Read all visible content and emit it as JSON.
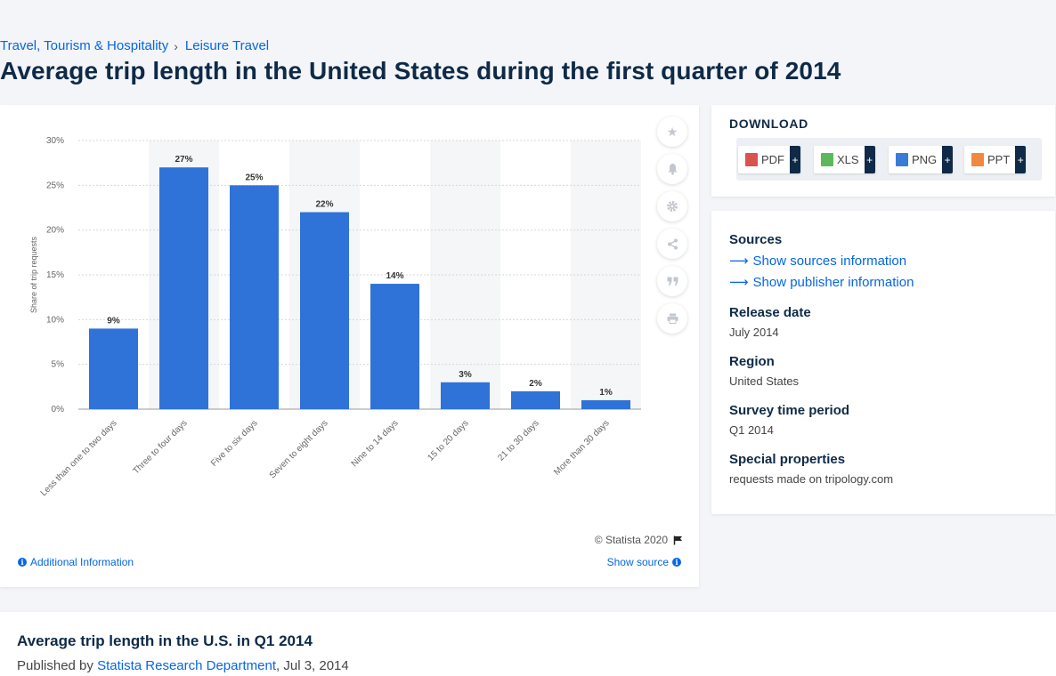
{
  "breadcrumb": [
    {
      "label": "Travel, Tourism & Hospitality"
    },
    {
      "label": "Leisure Travel"
    }
  ],
  "page_title": "Average trip length in the United States during the first quarter of 2014",
  "chart_data": {
    "type": "bar",
    "title": "",
    "xlabel": "",
    "ylabel": "Share of trip requests",
    "categories": [
      "Less than one to two days",
      "Three to four days",
      "Five to six days",
      "Seven to eight days",
      "Nine to 14 days",
      "15 to 20 days",
      "21 to 30 days",
      "More than 30 days"
    ],
    "values": [
      9,
      27,
      25,
      22,
      14,
      3,
      2,
      1
    ],
    "value_labels": [
      "9%",
      "27%",
      "25%",
      "22%",
      "14%",
      "3%",
      "2%",
      "1%"
    ],
    "y_ticks": [
      0,
      5,
      10,
      15,
      20,
      25,
      30
    ],
    "y_tick_labels": [
      "0%",
      "5%",
      "10%",
      "15%",
      "20%",
      "25%",
      "30%"
    ],
    "ylim": [
      0,
      30
    ],
    "grid": true,
    "bar_color": "#2f72d8"
  },
  "chart_footer": {
    "copyright": "© Statista 2020",
    "additional_info": "Additional Information",
    "show_source": "Show source"
  },
  "tools": [
    "star-icon",
    "bell-icon",
    "gear-icon",
    "share-icon",
    "quote-icon",
    "print-icon"
  ],
  "download": {
    "title": "DOWNLOAD",
    "formats": [
      {
        "label": "PDF",
        "color": "#d9534f"
      },
      {
        "label": "XLS",
        "color": "#5cb85c"
      },
      {
        "label": "PNG",
        "color": "#3a7bd5"
      },
      {
        "label": "PPT",
        "color": "#f0883e"
      }
    ],
    "plus": "+"
  },
  "details": {
    "sources_label": "Sources",
    "show_sources": "Show sources information",
    "show_publisher": "Show publisher information",
    "release_date_label": "Release date",
    "release_date": "July 2014",
    "region_label": "Region",
    "region": "United States",
    "survey_period_label": "Survey time period",
    "survey_period": "Q1 2014",
    "special_label": "Special properties",
    "special": "requests made on tripology.com"
  },
  "bottom": {
    "title": "Average trip length in the U.S. in Q1 2014",
    "published_by": "Published by",
    "publisher": "Statista Research Department",
    "date": ", Jul 3, 2014"
  }
}
